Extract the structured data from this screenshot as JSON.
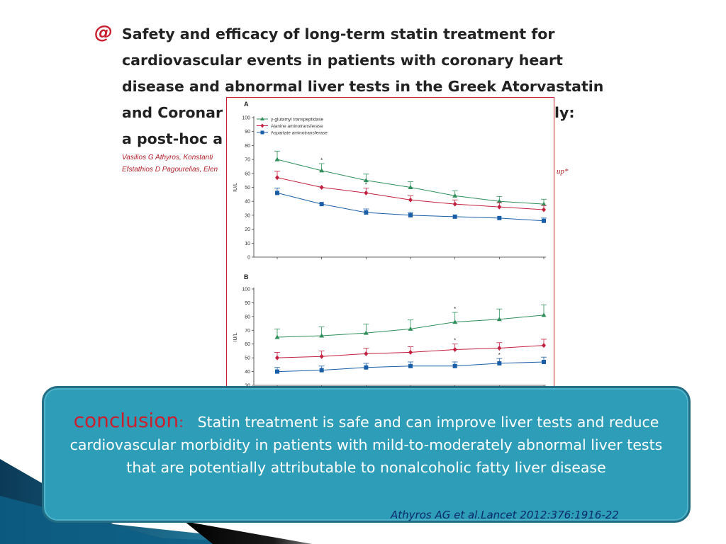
{
  "header": {
    "logo_glyph": "@",
    "title_lines": [
      "Safety and efficacy of long-term statin treatment for",
      "cardiovascular events in patients with coronary heart",
      "disease and abnormal liver tests in the Greek Atorvastatin",
      "and Coronar",
      "a post-hoc a"
    ],
    "title_line4_tail": "ly:",
    "authors_line1": "Vasilios G Athyros, Konstanti",
    "authors_line2": "Efstathios D Pagourelias, Elen",
    "authors_tail": "up*"
  },
  "chart_data": [
    {
      "type": "line",
      "panel_label": "A",
      "ylabel": "IU/L",
      "ylim": [
        0,
        100
      ],
      "yticks": [
        0,
        10,
        20,
        30,
        40,
        50,
        60,
        70,
        80,
        90,
        100
      ],
      "x": [
        0,
        1,
        2,
        3,
        4,
        5,
        6
      ],
      "series": [
        {
          "name": "γ-glutamyl transpeptidase",
          "color": "#2f8f5a",
          "marker": "triangle",
          "values": [
            70,
            62,
            55,
            50,
            44,
            40,
            38
          ],
          "errors": [
            6,
            5,
            4.5,
            4,
            3.5,
            3.5,
            3.5
          ],
          "significant": [
            false,
            true,
            false,
            false,
            false,
            false,
            false
          ]
        },
        {
          "name": "Alanine aminotransferase",
          "color": "#c2203f",
          "marker": "diamond",
          "values": [
            57,
            50,
            46,
            41,
            38,
            36,
            34
          ],
          "errors": [
            4.5,
            0,
            3.5,
            3,
            3,
            3,
            3
          ],
          "significant": [
            false,
            false,
            true,
            false,
            false,
            false,
            false
          ]
        },
        {
          "name": "Aspartate aminotransferase",
          "color": "#1a5ea8",
          "marker": "square",
          "values": [
            46,
            38,
            32,
            30,
            29,
            28,
            26
          ],
          "errors": [
            3.5,
            0,
            2.5,
            2,
            0,
            0,
            2
          ],
          "significant": [
            false,
            false,
            false,
            false,
            false,
            false,
            false
          ]
        }
      ]
    },
    {
      "type": "line",
      "panel_label": "B",
      "ylabel": "IU/L",
      "ylim": [
        30,
        100
      ],
      "yticks": [
        30,
        40,
        50,
        60,
        70,
        80,
        90,
        100
      ],
      "x": [
        0,
        1,
        2,
        3,
        4,
        5,
        6
      ],
      "series": [
        {
          "name": "γ-glutamyl transpeptidase",
          "color": "#2f8f5a",
          "marker": "triangle",
          "values": [
            65,
            66,
            68,
            71,
            76,
            78,
            81
          ],
          "errors": [
            6,
            6.5,
            6.5,
            6.5,
            7,
            7.5,
            7.5
          ],
          "significant": [
            false,
            false,
            false,
            false,
            true,
            false,
            false
          ]
        },
        {
          "name": "Alanine aminotransferase",
          "color": "#c2203f",
          "marker": "diamond",
          "values": [
            50,
            51,
            53,
            54,
            56,
            57,
            59
          ],
          "errors": [
            4,
            4,
            4,
            4,
            4,
            4,
            4.5
          ],
          "significant": [
            false,
            false,
            false,
            false,
            true,
            false,
            false
          ]
        },
        {
          "name": "Aspartate aminotransferase",
          "color": "#1a5ea8",
          "marker": "square",
          "values": [
            40,
            41,
            43,
            44,
            44,
            46,
            47
          ],
          "errors": [
            3,
            3,
            3,
            3,
            3,
            3.5,
            3.5
          ],
          "significant": [
            false,
            false,
            false,
            false,
            false,
            true,
            false
          ]
        }
      ]
    }
  ],
  "conclusion": {
    "heading": "conclusion",
    "colon": ":",
    "text": "Statin treatment is safe and can improve liver tests and reduce cardiovascular morbidity in patients with mild-to-moderately abnormal liver tests that are potentially attributable to nonalcoholic fatty liver disease"
  },
  "citation": "Athyros AG et al.Lancet 2012:376:1916-22",
  "colors": {
    "box_fill": "#2d9db8",
    "box_border": "#236e85",
    "accent_red": "#c8202f",
    "citation_navy": "#0a2b6b"
  }
}
